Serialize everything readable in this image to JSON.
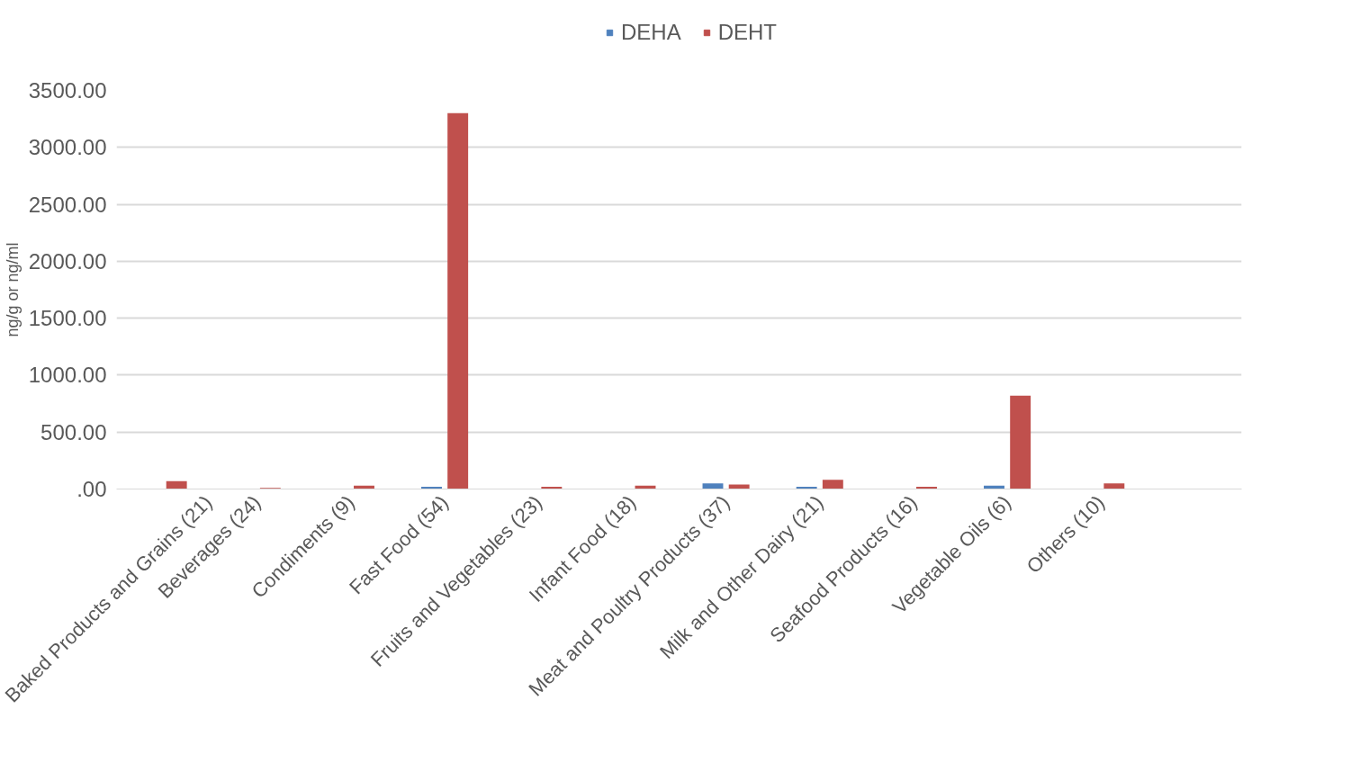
{
  "chart_data": {
    "type": "bar",
    "ylabel": "ng/g or ng/ml",
    "categories": [
      "Baked Products and Grains (21)",
      "Beverages (24)",
      "Condiments (9)",
      "Fast Food (54)",
      "Fruits and Vegetables (23)",
      "Infant Food (18)",
      "Meat and Poultry Products (37)",
      "Milk and Other Dairy (21)",
      "Seafood Products (16)",
      "Vegetable Oils (6)",
      "Others (10)",
      null
    ],
    "series": [
      {
        "name": "DEHA",
        "color": "#4f81bd",
        "values": [
          null,
          null,
          null,
          20,
          null,
          null,
          50,
          20,
          null,
          30,
          null,
          null
        ]
      },
      {
        "name": "DEHT",
        "color": "#c0504d",
        "values": [
          70,
          10,
          30,
          3300,
          20,
          30,
          40,
          80,
          20,
          820,
          50,
          null
        ]
      }
    ],
    "ylim": [
      0,
      3500
    ],
    "yticks": [
      {
        "value": 0,
        "label": ".00"
      },
      {
        "value": 500,
        "label": "500.00"
      },
      {
        "value": 1000,
        "label": "1000.00"
      },
      {
        "value": 1500,
        "label": "1500.00"
      },
      {
        "value": 2000,
        "label": "2000.00"
      },
      {
        "value": 2500,
        "label": "2500.00"
      },
      {
        "value": 3000,
        "label": "3000.00"
      },
      {
        "value": 3500,
        "label": "3500.00"
      }
    ],
    "grid": "y",
    "legend": "top"
  }
}
